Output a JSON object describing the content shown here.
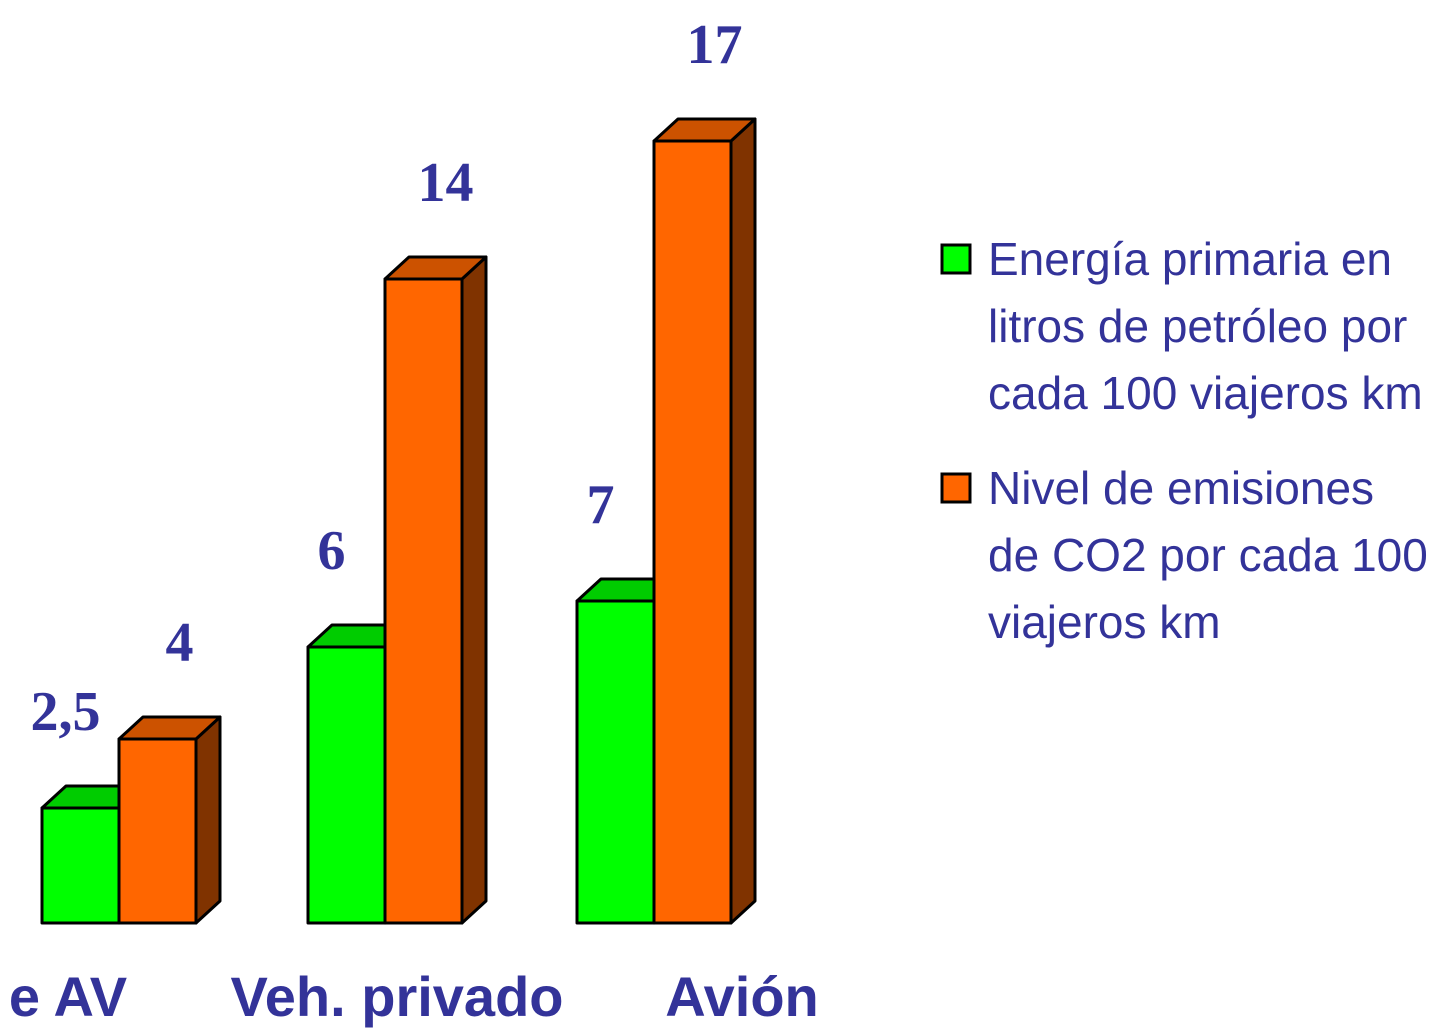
{
  "chart_data": {
    "type": "bar3d",
    "categories": [
      "e AV",
      "Veh. privado",
      "Avión"
    ],
    "series": [
      {
        "name": "Energía primaria en litros de petróleo por cada 100 viajeros km",
        "color": "#00ff00",
        "values": [
          2.5,
          6,
          7
        ],
        "value_labels": [
          "2,5",
          "6",
          "7"
        ]
      },
      {
        "name": "Nivel de emisiones de CO2 por cada 100 viajeros km",
        "color": "#ff6600",
        "values": [
          4,
          14,
          17
        ],
        "value_labels": [
          "4",
          "14",
          "17"
        ]
      }
    ],
    "legend": "right"
  }
}
